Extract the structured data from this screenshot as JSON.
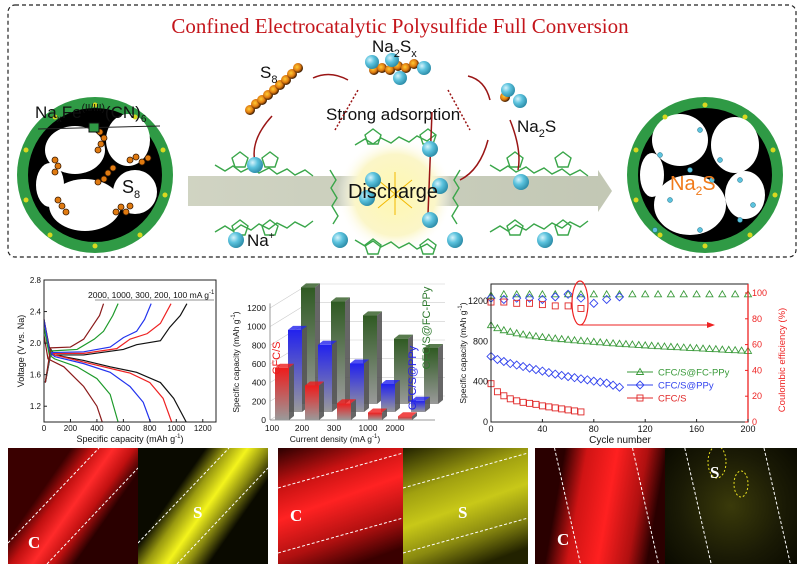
{
  "scheme": {
    "title": "Confined Electrocatalytic Polysulfide Full Conversion",
    "catalyst_label": {
      "a": "Na",
      "a_sub": "x",
      "b": "Fe",
      "b_sup": "(II/III)",
      "c": "(CN)",
      "c_sub": "6"
    },
    "s8_left": {
      "a": "S",
      "sub": "8"
    },
    "s8_mid": {
      "a": "S",
      "sub": "8"
    },
    "polysulfide": {
      "a": "Na",
      "sub": "2",
      "b": "S",
      "sub2": "x"
    },
    "adsorption": "Strong adsorption",
    "na2s_mid": {
      "a": "Na",
      "sub": "2",
      "b": "S"
    },
    "na2s_right": {
      "a": "Na",
      "sub": "2",
      "b": "S"
    },
    "discharge": "Discharge",
    "na_ion": {
      "a": "Na",
      "sup": "+"
    },
    "colors": {
      "title": "#c4161c",
      "ring": "#2f9a45",
      "sphere": "#5cc3de",
      "polymer": "#3aa64a",
      "na2s_text": "#f07a1a"
    }
  },
  "chart_data": [
    {
      "type": "line",
      "title": "",
      "annotation": "2000, 1000, 300, 200, 100 mA g",
      "annotation_sup": "-1",
      "xlabel": "Specific capacity (mAh g",
      "xlabel_sup": "-1",
      "xlabel_end": ")",
      "ylabel": "Voltage (V vs. Na)",
      "xlim": [
        0,
        1300
      ],
      "ylim": [
        1.0,
        2.8
      ],
      "xticks": [
        "0",
        "200",
        "400",
        "600",
        "800",
        "1000",
        "1200"
      ],
      "yticks": [
        "1.2",
        "1.6",
        "2.0",
        "2.4",
        "2.8"
      ],
      "series": [
        {
          "name": "100 mA g-1",
          "color": "#111111",
          "discharge": [
            [
              0,
              2.3
            ],
            [
              40,
              1.95
            ],
            [
              80,
              1.85
            ],
            [
              300,
              1.78
            ],
            [
              500,
              1.7
            ],
            [
              700,
              1.63
            ],
            [
              880,
              1.5
            ],
            [
              980,
              1.3
            ],
            [
              1075,
              1.0
            ]
          ],
          "charge": [
            [
              10,
              1.5
            ],
            [
              50,
              1.85
            ],
            [
              300,
              1.85
            ],
            [
              600,
              1.92
            ],
            [
              700,
              1.98
            ],
            [
              880,
              2.03
            ],
            [
              950,
              2.2
            ],
            [
              1030,
              2.35
            ],
            [
              1080,
              2.5
            ]
          ]
        },
        {
          "name": "200 mA g-1",
          "color": "#ee2222",
          "discharge": [
            [
              0,
              2.3
            ],
            [
              40,
              1.92
            ],
            [
              80,
              1.85
            ],
            [
              300,
              1.76
            ],
            [
              500,
              1.68
            ],
            [
              650,
              1.62
            ],
            [
              800,
              1.5
            ],
            [
              900,
              1.3
            ],
            [
              965,
              1.0
            ]
          ],
          "charge": [
            [
              10,
              1.5
            ],
            [
              50,
              1.87
            ],
            [
              300,
              1.87
            ],
            [
              550,
              1.93
            ],
            [
              650,
              2.05
            ],
            [
              780,
              2.12
            ],
            [
              880,
              2.25
            ],
            [
              960,
              2.5
            ]
          ]
        },
        {
          "name": "300 mA g-1",
          "color": "#2233ee",
          "discharge": [
            [
              0,
              2.3
            ],
            [
              40,
              1.9
            ],
            [
              80,
              1.83
            ],
            [
              300,
              1.74
            ],
            [
              500,
              1.63
            ],
            [
              650,
              1.45
            ],
            [
              750,
              1.25
            ],
            [
              805,
              1.0
            ]
          ],
          "charge": [
            [
              10,
              1.5
            ],
            [
              50,
              1.88
            ],
            [
              300,
              1.89
            ],
            [
              500,
              1.95
            ],
            [
              600,
              2.07
            ],
            [
              700,
              2.15
            ],
            [
              760,
              2.3
            ],
            [
              810,
              2.5
            ]
          ]
        },
        {
          "name": "1000 mA g-1",
          "color": "#1d9a2a",
          "discharge": [
            [
              0,
              2.2
            ],
            [
              40,
              1.85
            ],
            [
              80,
              1.8
            ],
            [
              250,
              1.7
            ],
            [
              400,
              1.55
            ],
            [
              500,
              1.35
            ],
            [
              560,
              1.0
            ]
          ],
          "charge": [
            [
              10,
              1.5
            ],
            [
              50,
              1.9
            ],
            [
              250,
              1.92
            ],
            [
              380,
              2.05
            ],
            [
              450,
              2.15
            ],
            [
              520,
              2.35
            ],
            [
              560,
              2.5
            ]
          ]
        },
        {
          "name": "2000 mA g-1",
          "color": "#8b1a1a",
          "discharge": [
            [
              0,
              2.1
            ],
            [
              30,
              1.8
            ],
            [
              150,
              1.7
            ],
            [
              300,
              1.45
            ],
            [
              400,
              1.2
            ],
            [
              440,
              1.0
            ]
          ],
          "charge": [
            [
              10,
              1.5
            ],
            [
              50,
              1.94
            ],
            [
              200,
              1.95
            ],
            [
              300,
              2.05
            ],
            [
              360,
              2.2
            ],
            [
              420,
              2.35
            ],
            [
              450,
              2.5
            ]
          ]
        }
      ]
    },
    {
      "type": "bar",
      "xlabel": "Current density (mA g",
      "xlabel_sup": "-1",
      "xlabel_end": ")",
      "ylabel": "Specific capacity (mAh g",
      "ylabel_sup": "-1",
      "ylabel_end": ")",
      "ylim": [
        0,
        1200
      ],
      "yticks": [
        "0",
        "200",
        "400",
        "600",
        "800",
        "1000",
        "1200"
      ],
      "categories": [
        "100",
        "200",
        "300",
        "1000",
        "2000"
      ],
      "series": [
        {
          "name": "CFC/S",
          "color": "#ee1c1c",
          "values": [
            560,
            370,
            180,
            80,
            40
          ]
        },
        {
          "name": "CFC/S@PPy",
          "color": "#2222ee",
          "values": [
            880,
            720,
            520,
            300,
            120
          ]
        },
        {
          "name": "CFC/S@FC-PPy",
          "color": "#2f5a22",
          "values": [
            1250,
            1100,
            950,
            700,
            600
          ]
        }
      ]
    },
    {
      "type": "scatter",
      "xlabel": "Cycle number",
      "ylabel": "Specific capacity (mAh g",
      "ylabel_sup": "-1",
      "ylabel_end": ")",
      "ylabel_right": "Coulombic efficiency (%)",
      "xlim": [
        0,
        200
      ],
      "ylim": [
        0,
        1200
      ],
      "ylim_right": [
        0,
        100
      ],
      "xticks": [
        "0",
        "40",
        "80",
        "120",
        "160",
        "200"
      ],
      "yticks": [
        "0",
        "400",
        "800",
        "1200"
      ],
      "yticks_right": [
        "0",
        "20",
        "40",
        "60",
        "80",
        "100"
      ],
      "legend_position": "center-right",
      "series": [
        {
          "name": "CFC/S@FC-PPy",
          "color": "#3a9a3a",
          "marker": "triangle",
          "capacity_step": 5,
          "capacity": [
            960,
            930,
            910,
            895,
            880,
            868,
            858,
            850,
            842,
            835,
            828,
            822,
            816,
            810,
            805,
            800,
            795,
            790,
            785,
            780,
            776,
            772,
            768,
            764,
            760,
            756,
            752,
            748,
            745,
            742,
            738,
            735,
            732,
            728,
            725,
            722,
            718,
            715,
            712,
            708,
            705
          ],
          "ce_step": 10,
          "ce": [
            98,
            99,
            99,
            99,
            99,
            99,
            99,
            99,
            99,
            99,
            99,
            99,
            99,
            99,
            99,
            99,
            99,
            99,
            99,
            99,
            99
          ]
        },
        {
          "name": "CFC/S@PPy",
          "color": "#3344ee",
          "marker": "diamond",
          "capacity_step": 5,
          "capacity": [
            650,
            620,
            600,
            580,
            565,
            550,
            535,
            520,
            505,
            490,
            475,
            462,
            450,
            440,
            428,
            418,
            405,
            395,
            385,
            365,
            345
          ],
          "ce_step": 10,
          "ce": [
            96,
            95,
            96,
            96,
            95,
            97,
            99,
            96,
            92,
            95,
            97
          ]
        },
        {
          "name": "CFC/S",
          "color": "#e02828",
          "marker": "square",
          "capacity_step": 5,
          "capacity": [
            380,
            300,
            260,
            230,
            210,
            195,
            185,
            175,
            160,
            150,
            140,
            130,
            120,
            110,
            100
          ],
          "ce_step": 10,
          "ce": [
            93,
            93,
            92,
            92,
            91,
            90,
            90,
            88
          ]
        }
      ]
    }
  ],
  "micrographs": [
    {
      "element": "C",
      "color": "#ff1a1a"
    },
    {
      "element": "S",
      "color": "#f2f21a"
    },
    {
      "element": "C",
      "color": "#ff1a1a"
    },
    {
      "element": "S",
      "color": "#f2f21a"
    },
    {
      "element": "C",
      "color": "#ff1a1a"
    },
    {
      "element": "S",
      "color": "#f2f21a"
    }
  ]
}
